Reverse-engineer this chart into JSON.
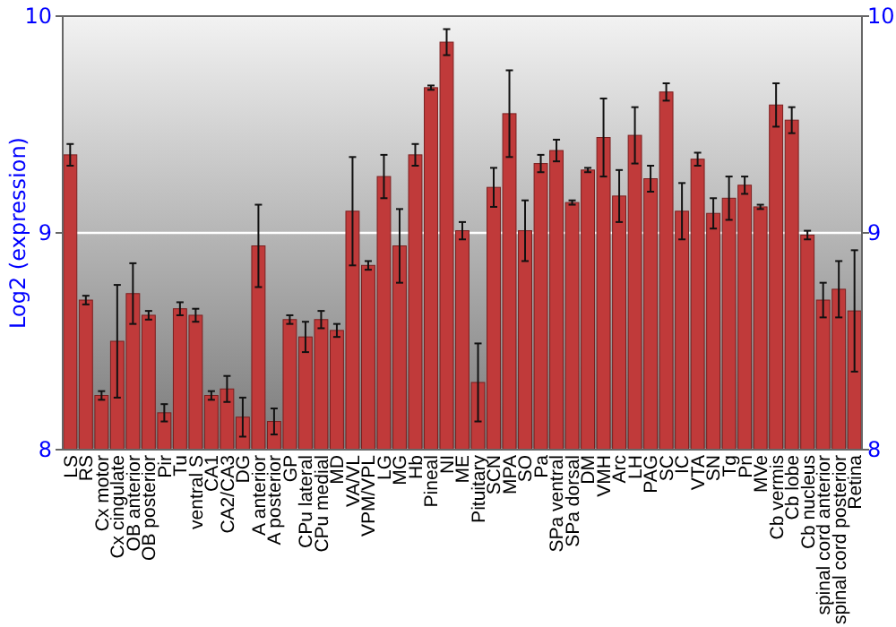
{
  "chart_data": {
    "type": "bar",
    "ylabel": "Log2 (expression)",
    "categories": [
      "LS",
      "RS",
      "Cx motor",
      "Cx cingulate",
      "OB anterior",
      "OB posterior",
      "Pir",
      "Tu",
      "ventral S",
      "CA1",
      "CA2/CA3",
      "DG",
      "A anterior",
      "A posterior",
      "GP",
      "CPu lateral",
      "CPu medial",
      "MD",
      "VA/VL",
      "VPM/VPL",
      "LG",
      "MG",
      "Hb",
      "Pineal",
      "NI",
      "ME",
      "Pituitary",
      "SCN",
      "MPA",
      "SO",
      "Pa",
      "SPa ventral",
      "SPa dorsal",
      "DM",
      "VMH",
      "Arc",
      "LH",
      "PAG",
      "SC",
      "IC",
      "VTA",
      "SN",
      "Tg",
      "Pn",
      "MVe",
      "Cb vermis",
      "Cb lobe",
      "Cb nucleus",
      "spinal cord anterior",
      "spinal cord posterior",
      "Retina"
    ],
    "values": [
      9.36,
      8.69,
      8.25,
      8.5,
      8.72,
      8.62,
      8.17,
      8.65,
      8.62,
      8.25,
      8.28,
      8.15,
      8.94,
      8.13,
      8.6,
      8.52,
      8.6,
      8.55,
      9.1,
      8.85,
      9.26,
      8.94,
      9.36,
      9.67,
      9.88,
      9.01,
      8.31,
      9.21,
      9.55,
      9.01,
      9.32,
      9.38,
      9.14,
      9.29,
      9.44,
      9.17,
      9.45,
      9.25,
      9.65,
      9.1,
      9.34,
      9.09,
      9.16,
      9.22,
      9.12,
      9.59,
      9.52,
      8.99,
      8.69,
      8.74,
      8.64
    ],
    "errors": [
      0.05,
      0.02,
      0.02,
      0.26,
      0.14,
      0.02,
      0.04,
      0.03,
      0.03,
      0.02,
      0.06,
      0.09,
      0.19,
      0.06,
      0.02,
      0.07,
      0.04,
      0.03,
      0.25,
      0.02,
      0.1,
      0.17,
      0.05,
      0.01,
      0.06,
      0.04,
      0.18,
      0.09,
      0.2,
      0.14,
      0.04,
      0.05,
      0.01,
      0.01,
      0.18,
      0.12,
      0.13,
      0.06,
      0.04,
      0.13,
      0.03,
      0.07,
      0.1,
      0.04,
      0.01,
      0.1,
      0.06,
      0.02,
      0.08,
      0.13,
      0.28
    ],
    "color": "#c03a3a",
    "ylim": [
      8,
      10
    ],
    "yticks": [
      8,
      9,
      10
    ],
    "y2lim": [
      8,
      10
    ],
    "y2ticks": [
      8,
      9,
      10
    ],
    "grid": "y"
  }
}
